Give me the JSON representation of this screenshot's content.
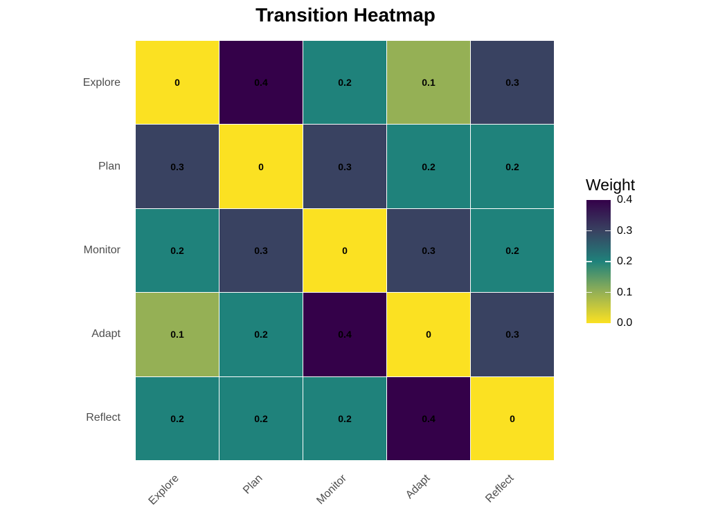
{
  "title": "Transition Heatmap",
  "chart_data": {
    "type": "heatmap",
    "title": "Transition Heatmap",
    "rows": [
      "Explore",
      "Plan",
      "Monitor",
      "Adapt",
      "Reflect"
    ],
    "cols": [
      "Explore",
      "Plan",
      "Monitor",
      "Adapt",
      "Reflect"
    ],
    "values": [
      [
        0,
        0.4,
        0.2,
        0.1,
        0.3
      ],
      [
        0.3,
        0,
        0.3,
        0.2,
        0.2
      ],
      [
        0.2,
        0.3,
        0,
        0.3,
        0.2
      ],
      [
        0.1,
        0.2,
        0.4,
        0,
        0.3
      ],
      [
        0.2,
        0.2,
        0.2,
        0.4,
        0
      ]
    ],
    "color_stops": [
      {
        "value": 0.0,
        "color": "#FBE122"
      },
      {
        "value": 0.1,
        "color": "#95B055"
      },
      {
        "value": 0.2,
        "color": "#1F827B"
      },
      {
        "value": 0.3,
        "color": "#394261"
      },
      {
        "value": 0.4,
        "color": "#340149"
      }
    ],
    "legend": {
      "title": "Weight",
      "tick_labels": [
        "0.4",
        "0.3",
        "0.2",
        "0.1",
        "0.0"
      ],
      "min": 0.0,
      "max": 0.4,
      "position": "right"
    },
    "axis_text_color": "#4d4d4d",
    "cell_text_color": "#000000",
    "grid_seam_color": "#ffffff"
  }
}
